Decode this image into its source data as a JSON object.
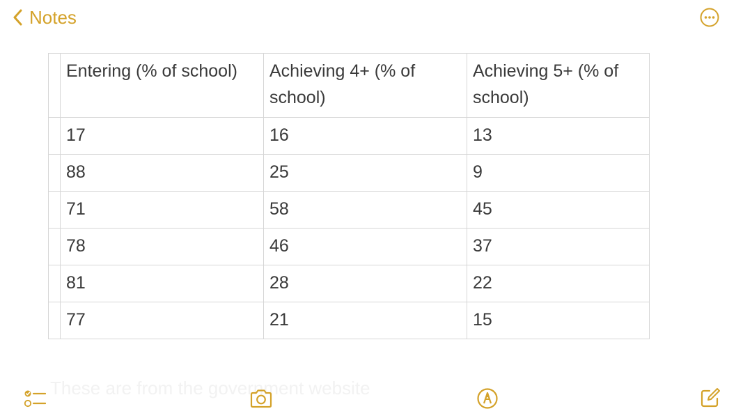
{
  "nav": {
    "back_label": "Notes",
    "back_icon": "chevron-left-icon",
    "more_icon": "ellipsis-circle-icon"
  },
  "table": {
    "headers": [
      "",
      "Entering (% of school)",
      "Achieving 4+ (% of school)",
      "Achieving 5+ (% of school)"
    ],
    "rows": [
      [
        "",
        "17",
        "16",
        "13"
      ],
      [
        "",
        "88",
        "25",
        "9"
      ],
      [
        "",
        "71",
        "58",
        "45"
      ],
      [
        "",
        "78",
        "46",
        "37"
      ],
      [
        "",
        "81",
        "28",
        "22"
      ],
      [
        "",
        "77",
        "21",
        "15"
      ]
    ]
  },
  "note": {
    "body_text": "These are from the government website"
  },
  "toolbar": {
    "checklist_icon": "checklist-icon",
    "camera_icon": "camera-icon",
    "markup_icon": "markup-pen-icon",
    "compose_icon": "compose-icon"
  },
  "colors": {
    "accent": "#d4a22a",
    "table_border": "#d6d6d6",
    "text": "#3a3a3a",
    "background": "#ffffff"
  }
}
